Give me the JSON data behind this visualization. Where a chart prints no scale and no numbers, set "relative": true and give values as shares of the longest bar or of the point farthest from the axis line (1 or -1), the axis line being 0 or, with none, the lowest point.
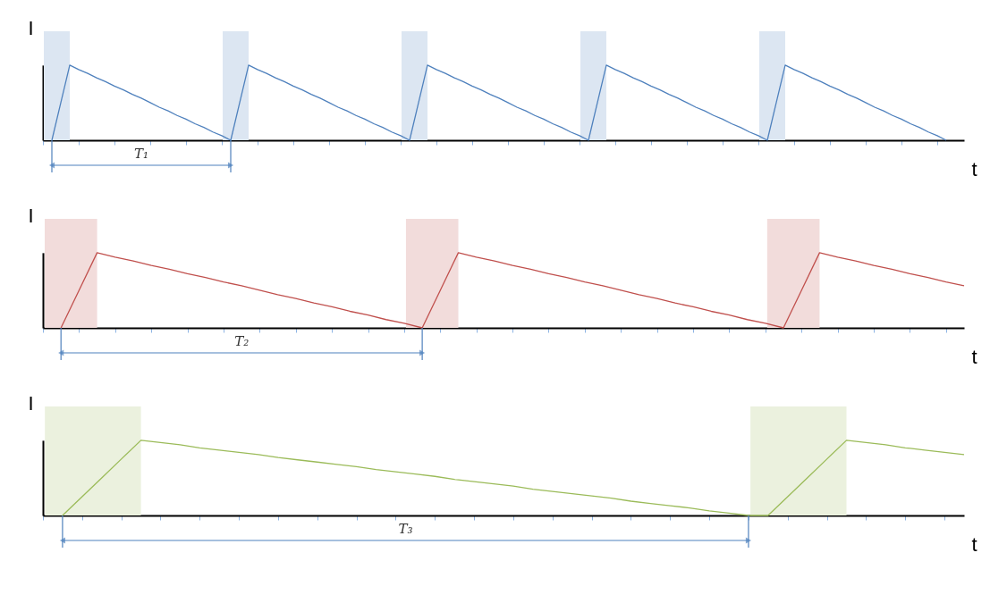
{
  "chart_data": [
    {
      "type": "line",
      "relative": true,
      "ylabel": "I",
      "xlabel": "t",
      "grid": false,
      "annotations": [
        "T₁"
      ],
      "categories": [
        null,
        null,
        null,
        null,
        null,
        null,
        null,
        null,
        null,
        null,
        null,
        null,
        null,
        null,
        null,
        null,
        null,
        null,
        null,
        null,
        null,
        null,
        null,
        null,
        null,
        null,
        null,
        null,
        null,
        null,
        null,
        null,
        null,
        null,
        null,
        null,
        null,
        null,
        null,
        null,
        null,
        null,
        null,
        null,
        null,
        null,
        null,
        null,
        null,
        null,
        null,
        null,
        null,
        null,
        null,
        null,
        null,
        null,
        null,
        null,
        null,
        null,
        null,
        null,
        null,
        null,
        null,
        null,
        null,
        null,
        null,
        null,
        null,
        null,
        null,
        null,
        null,
        null,
        null,
        null,
        null,
        null,
        null,
        null,
        null,
        null,
        null,
        null,
        null,
        null,
        null,
        null,
        null,
        null,
        null,
        null,
        null,
        null,
        null,
        null,
        null,
        null,
        null,
        null
      ],
      "series": [
        {
          "color": "#4f81bd",
          "values": [
            null,
            0,
            0.5,
            1,
            0.94,
            0.89,
            0.83,
            0.78,
            0.72,
            0.67,
            0.61,
            0.56,
            0.5,
            0.44,
            0.39,
            0.33,
            0.28,
            0.22,
            0.17,
            0.11,
            0.06,
            0,
            0.5,
            1,
            0.94,
            0.89,
            0.83,
            0.78,
            0.72,
            0.67,
            0.61,
            0.56,
            0.5,
            0.44,
            0.39,
            0.33,
            0.28,
            0.22,
            0.17,
            0.11,
            0.06,
            0,
            0.5,
            1,
            0.94,
            0.89,
            0.83,
            0.78,
            0.72,
            0.67,
            0.61,
            0.56,
            0.5,
            0.44,
            0.39,
            0.33,
            0.28,
            0.22,
            0.17,
            0.11,
            0.06,
            0,
            0.5,
            1,
            0.94,
            0.89,
            0.83,
            0.78,
            0.72,
            0.67,
            0.61,
            0.56,
            0.5,
            0.44,
            0.39,
            0.33,
            0.28,
            0.22,
            0.17,
            0.11,
            0.06,
            0,
            0.5,
            1,
            0.94,
            0.89,
            0.83,
            0.78,
            0.72,
            0.67,
            0.61,
            0.56,
            0.5,
            0.44,
            0.39,
            0.33,
            0.28,
            0.22,
            0.17,
            0.11,
            0.06,
            0,
            null,
            null
          ]
        }
      ]
    },
    {
      "type": "line",
      "relative": true,
      "ylabel": "I",
      "xlabel": "t",
      "grid": false,
      "annotations": [
        "T₂"
      ],
      "categories": [
        null,
        null,
        null,
        null,
        null,
        null,
        null,
        null,
        null,
        null,
        null,
        null,
        null,
        null,
        null,
        null,
        null,
        null,
        null,
        null,
        null,
        null,
        null,
        null,
        null,
        null,
        null,
        null,
        null,
        null,
        null,
        null,
        null,
        null,
        null,
        null,
        null,
        null,
        null,
        null,
        null,
        null,
        null,
        null,
        null,
        null,
        null,
        null,
        null,
        null,
        null,
        null
      ],
      "series": [
        {
          "color": "#c0504d",
          "values": [
            null,
            0,
            0.5,
            1,
            0.94,
            0.89,
            0.83,
            0.78,
            0.72,
            0.67,
            0.61,
            0.56,
            0.5,
            0.44,
            0.39,
            0.33,
            0.28,
            0.22,
            0.17,
            0.11,
            0.06,
            0,
            0.5,
            1,
            0.94,
            0.89,
            0.83,
            0.78,
            0.72,
            0.67,
            0.61,
            0.56,
            0.5,
            0.44,
            0.39,
            0.33,
            0.28,
            0.22,
            0.17,
            0.11,
            0.06,
            0,
            0.5,
            1,
            0.94,
            0.89,
            0.83,
            0.78,
            0.72,
            0.67,
            0.61,
            0.56
          ]
        }
      ]
    },
    {
      "type": "line",
      "relative": true,
      "ylabel": "I",
      "xlabel": "t",
      "grid": false,
      "annotations": [
        "T₃"
      ],
      "categories": [
        null,
        null,
        null,
        null,
        null,
        null,
        null,
        null,
        null,
        null,
        null,
        null,
        null,
        null,
        null,
        null,
        null,
        null,
        null,
        null,
        null,
        null,
        null,
        null,
        null,
        null,
        null,
        null,
        null,
        null,
        null,
        null,
        null,
        null,
        null,
        null,
        null,
        null,
        null,
        null,
        null,
        null,
        null,
        null,
        null,
        null,
        null,
        null
      ],
      "series": [
        {
          "color": "#9bbb59",
          "values": [
            null,
            0,
            0.25,
            0.5,
            0.75,
            1,
            0.97,
            0.94,
            0.9,
            0.87,
            0.84,
            0.81,
            0.77,
            0.74,
            0.71,
            0.68,
            0.65,
            0.61,
            0.58,
            0.55,
            0.52,
            0.48,
            0.45,
            0.42,
            0.39,
            0.35,
            0.32,
            0.29,
            0.26,
            0.23,
            0.19,
            0.16,
            0.13,
            0.1,
            0.06,
            0.03,
            0,
            0,
            0.25,
            0.5,
            0.75,
            1,
            0.97,
            0.94,
            0.9,
            0.87,
            0.84,
            0.81
          ]
        }
      ]
    }
  ]
}
